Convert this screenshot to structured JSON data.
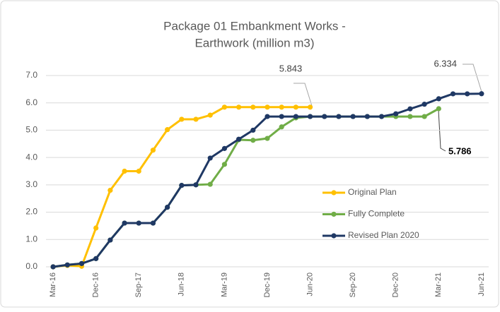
{
  "chart_data": {
    "type": "line",
    "title": [
      "Package 01 Embankment Works -",
      "Earthwork (million m3)"
    ],
    "categories": [
      "Mar-16",
      null,
      null,
      "Dec-16",
      null,
      null,
      "Sep-17",
      null,
      null,
      "Jun-18",
      null,
      null,
      "Mar-19",
      null,
      null,
      "Dec-19",
      null,
      null,
      "Jun-20",
      null,
      null,
      "Sep-20",
      null,
      null,
      "Dec-20",
      null,
      null,
      "Mar-21",
      null,
      null,
      "Jun-21"
    ],
    "series": [
      {
        "name": "Original Plan",
        "color": "#ffc000",
        "values": [
          0,
          0.05,
          0.02,
          1.42,
          2.8,
          3.5,
          3.5,
          4.27,
          5.02,
          5.4,
          5.4,
          5.55,
          5.843,
          5.843,
          5.843,
          5.843,
          5.843,
          5.843,
          5.843,
          null,
          null,
          null,
          null,
          null,
          null,
          null,
          null,
          null,
          null,
          null,
          null
        ]
      },
      {
        "name": "Fully Complete",
        "color": "#70ad47",
        "values": [
          0,
          0.07,
          0.12,
          0.3,
          0.98,
          1.6,
          1.6,
          1.6,
          2.18,
          2.98,
          3.0,
          3.02,
          3.75,
          4.65,
          4.63,
          4.7,
          5.12,
          5.45,
          5.5,
          5.5,
          5.5,
          5.5,
          5.5,
          5.5,
          5.5,
          5.5,
          5.5,
          5.786,
          null,
          null,
          null
        ]
      },
      {
        "name": "Revised Plan 2020",
        "color": "#1f3864",
        "values": [
          0,
          0.07,
          0.12,
          0.3,
          0.98,
          1.6,
          1.6,
          1.6,
          2.18,
          2.98,
          3.0,
          3.98,
          4.33,
          4.67,
          5.0,
          5.5,
          5.5,
          5.5,
          5.5,
          5.5,
          5.5,
          5.5,
          5.5,
          5.5,
          5.6,
          5.78,
          5.95,
          6.15,
          6.33,
          6.33,
          6.334
        ]
      }
    ],
    "annotations": [
      "5.843",
      "6.334",
      "5.786"
    ],
    "ylim": [
      0,
      7
    ],
    "yticks": [
      {
        "value": 0,
        "label": "0.0"
      },
      {
        "value": 1,
        "label": "1.0"
      },
      {
        "value": 2,
        "label": "2.0"
      },
      {
        "value": 3,
        "label": "3.0"
      },
      {
        "value": 4,
        "label": "4.0"
      },
      {
        "value": 5,
        "label": "5.0"
      },
      {
        "value": 6,
        "label": "6.0"
      },
      {
        "value": 7,
        "label": "7.0"
      }
    ],
    "grid": true
  }
}
